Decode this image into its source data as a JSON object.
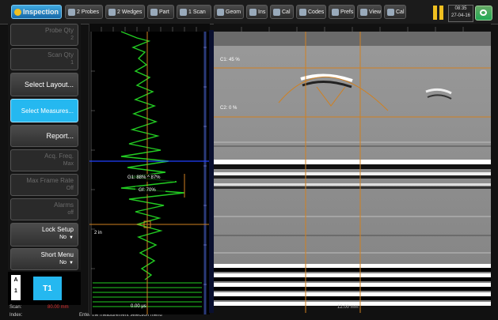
{
  "topbar": {
    "tabs": [
      {
        "label": "Inspection",
        "icon": "inspection-icon"
      },
      {
        "label": "2 Probes",
        "icon": "probes-icon"
      },
      {
        "label": "2 Wedges",
        "icon": "wedges-icon"
      },
      {
        "label": "Part",
        "icon": "part-icon"
      },
      {
        "label": "1 Scan",
        "icon": "scan-icon"
      },
      {
        "label": "Geom",
        "icon": "geometry-icon"
      },
      {
        "label": "Ins",
        "icon": "inspect-settings-icon"
      },
      {
        "label": "Cal",
        "icon": "calibration-icon"
      },
      {
        "label": "Codes",
        "icon": "codes-icon"
      },
      {
        "label": "Prefs",
        "icon": "preferences-icon"
      },
      {
        "label": "View",
        "icon": "view-icon"
      },
      {
        "label": "Cal",
        "icon": "calibration-2-icon"
      }
    ],
    "clock": {
      "time": "08:35",
      "date": "27-04-16"
    },
    "battery_icon": "battery-icon",
    "system_icon": "system-icon"
  },
  "left_menu": {
    "items": [
      {
        "label": "Probe Qty",
        "value": "2",
        "state": "disabled"
      },
      {
        "label": "Scan Qty",
        "value": "1",
        "state": "disabled"
      },
      {
        "label": "Select Layout...",
        "state": "enabled"
      },
      {
        "label": "Select Measures...",
        "state": "selected"
      },
      {
        "label": "Report...",
        "state": "enabled"
      },
      {
        "label": "Acq. Freq.",
        "value": "Max",
        "state": "disabled"
      },
      {
        "label": "Max Frame Rate",
        "value": "Off",
        "state": "disabled"
      },
      {
        "label": "Alarms",
        "value": "off",
        "state": "disabled"
      },
      {
        "label": "Lock Setup",
        "value": "No",
        "state": "enabled"
      },
      {
        "label": "Short Menu",
        "value": "No",
        "state": "enabled"
      }
    ],
    "group": {
      "letter": "A",
      "number": "1",
      "channel": "T1"
    },
    "scan_label": "Scan:",
    "scan_value": "80.00 mm",
    "index_label": "Index:",
    "hint": "Enter the measurement selection menu"
  },
  "ascan": {
    "cursor_label_1": "G1: 88% ^ 87%",
    "cursor_label_2": "Gf: 70%",
    "depth_marker": "2 in",
    "bottom_label": "0.00 μs",
    "colors": {
      "signal": "#22cc22",
      "cursor": "#d08020",
      "gate": "#2040ff"
    }
  },
  "bscan": {
    "depth_label_1": "C1: 45 %",
    "depth_label_2": "C2: 0 %",
    "bottom_label": "12.00 mm",
    "colors": {
      "cursor": "#d08020",
      "hyperbola": "#d08020"
    }
  }
}
